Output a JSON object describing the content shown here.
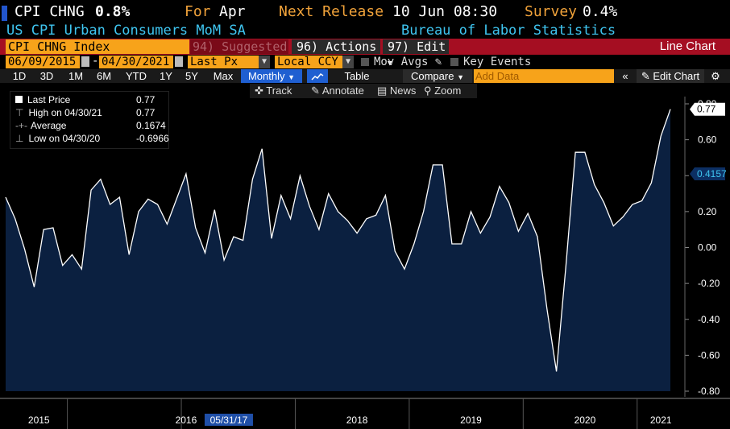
{
  "header": {
    "ticker": "CPI CHNG",
    "value": "0.8%",
    "for_label": "For",
    "for_value": "Apr",
    "next_release_label": "Next Release",
    "next_release_value": "10 Jun 08:30",
    "survey_label": "Survey",
    "survey_value": "0.4%",
    "description": "US CPI Urban Consumers MoM SA",
    "source": "Bureau of Labor Statistics"
  },
  "toolbar": {
    "index_name": "CPI CHNG Index",
    "suggested": "94) Suggested Charts",
    "actions": "96) Actions",
    "edit": "97) Edit",
    "chart_type": "Line Chart",
    "start_date": "06/09/2015",
    "end_date": "04/30/2021",
    "price_type": "Last Px",
    "currency": "Local CCY",
    "mov_avgs": "Mov Avgs",
    "key_events": "Key Events",
    "periods": [
      "1D",
      "3D",
      "1M",
      "6M",
      "YTD",
      "1Y",
      "5Y",
      "Max"
    ],
    "frequency": "Monthly",
    "table": "Table",
    "compare": "Compare",
    "add_data_placeholder": "Add Data",
    "edit_chart": "Edit Chart",
    "track": "Track",
    "annotate": "Annotate",
    "news": "News",
    "zoom": "Zoom"
  },
  "legend": {
    "last_price_label": "Last Price",
    "last_price_value": "0.77",
    "high_label": "High on 04/30/21",
    "high_value": "0.77",
    "average_label": "Average",
    "average_value": "0.1674",
    "low_label": "Low on 04/30/20",
    "low_value": "-0.6966"
  },
  "colors": {
    "red_bar": "#a50e22",
    "amber": "#f7a31a",
    "orange_text": "#f0a23a",
    "cyan_text": "#3fc5f0",
    "line": "#ffffff",
    "area": "#0b2040"
  },
  "chart_data": {
    "type": "area",
    "ylim": [
      -0.8,
      0.8
    ],
    "yticks": [
      -0.8,
      -0.6,
      -0.4,
      -0.2,
      0.0,
      0.2,
      0.4,
      0.6,
      0.8
    ],
    "ytick_labels": [
      "-0.80",
      "-0.60",
      "-0.40",
      "-0.20",
      "0.00",
      "0.20",
      "0.40",
      "0.60",
      "0.80"
    ],
    "xtick_labels": [
      "2015",
      "2016",
      "05/31/17",
      "2018",
      "2019",
      "2020",
      "2021"
    ],
    "last_value_label": "0.77",
    "average_line_label": "0.4157",
    "series": [
      {
        "values": [
          0.28,
          0.16,
          -0.01,
          -0.22,
          0.1,
          0.11,
          -0.1,
          -0.04,
          -0.12,
          0.32,
          0.38,
          0.24,
          0.28,
          -0.04,
          0.2,
          0.27,
          0.24,
          0.13,
          0.27,
          0.41,
          0.11,
          -0.03,
          0.21,
          -0.07,
          0.06,
          0.04,
          0.38,
          0.55,
          0.05,
          0.29,
          0.16,
          0.4,
          0.23,
          0.1,
          0.3,
          0.2,
          0.15,
          0.08,
          0.16,
          0.18,
          0.29,
          -0.02,
          -0.12,
          0.02,
          0.2,
          0.46,
          0.46,
          0.02,
          0.02,
          0.2,
          0.08,
          0.17,
          0.34,
          0.25,
          0.09,
          0.19,
          0.06,
          -0.34,
          -0.69,
          -0.1,
          0.53,
          0.53,
          0.35,
          0.25,
          0.12,
          0.17,
          0.24,
          0.26,
          0.36,
          0.62,
          0.77
        ]
      }
    ]
  }
}
